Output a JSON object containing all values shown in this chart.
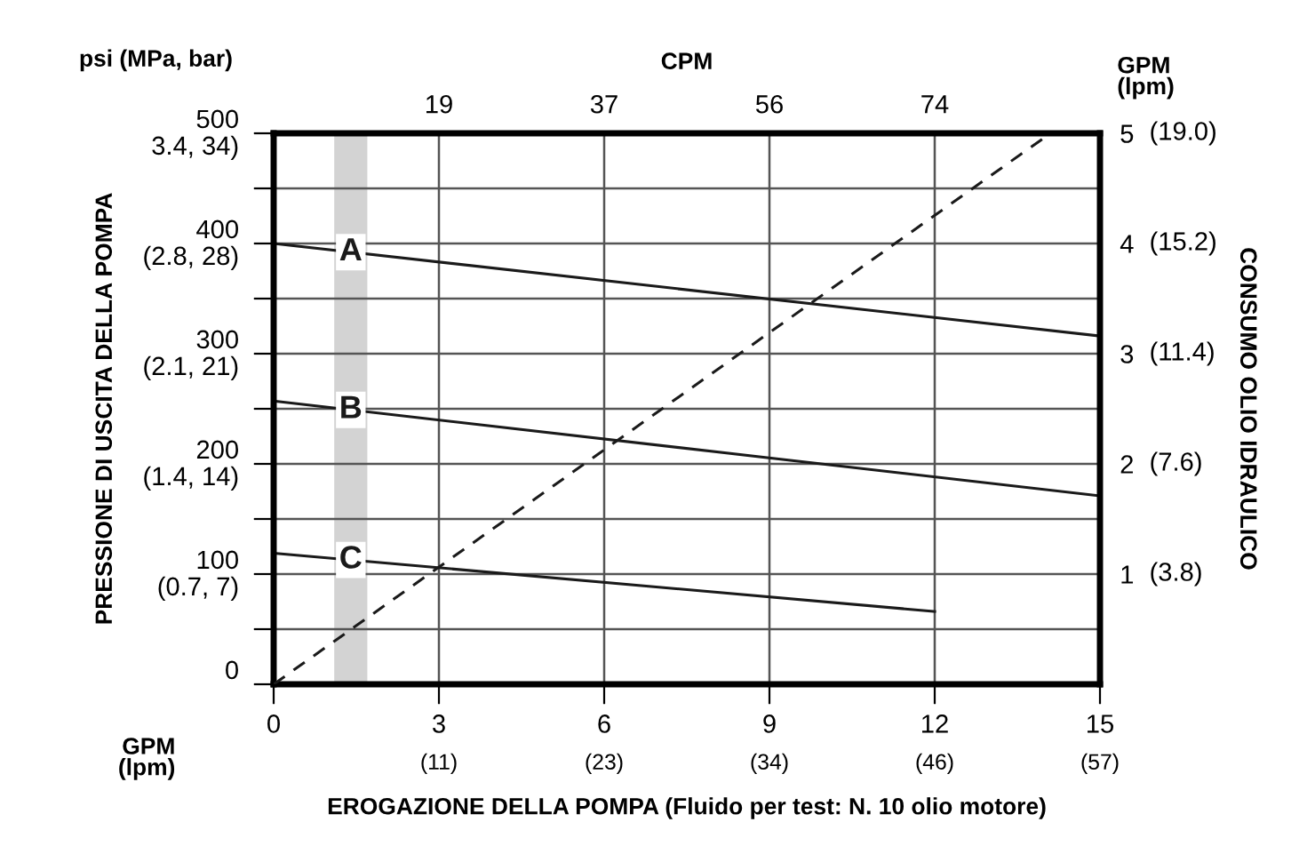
{
  "chart_data": {
    "type": "line",
    "xlabel": "EROGAZIONE DELLA POMPA (Fluido per test: N. 10 olio motore)",
    "ylabel": "PRESSIONE DI USCITA DELLA POMPA",
    "y2label": "CONSUMO OLIO IDRAULICO",
    "x2label": "CPM",
    "annotations": [
      "psi (MPa, bar)",
      "GPM\n(lpm)",
      "GPM\n(lpm)",
      "(0.7, 7)",
      "(1.4, 14)",
      "(2.1, 21)",
      "(2.8, 28)",
      "3.4, 34)",
      "(11)",
      "(23)",
      "(34)",
      "(46)",
      "(57)",
      "(3.8)",
      "(7.6)",
      "(11.4)",
      "(15.2)",
      "(19.0)",
      "19",
      "37",
      "56",
      "74"
    ],
    "series": [
      {
        "name": "A",
        "color": "#1a1a1a",
        "x": [
          0,
          15
        ],
        "values": [
          400,
          316
        ]
      },
      {
        "name": "B",
        "color": "#1a1a1a",
        "x": [
          0,
          15
        ],
        "values": [
          257,
          171
        ]
      },
      {
        "name": "C",
        "color": "#1a1a1a",
        "x": [
          0,
          12
        ],
        "values": [
          119,
          66
        ]
      },
      {
        "color": "#1a1a1a",
        "x": [
          0,
          14.1
        ],
        "values": [
          0,
          5
        ],
        "axis": "y2",
        "line_style": "dashed"
      }
    ],
    "bands": [
      {
        "axis": "x",
        "from": 1.1,
        "to": 1.7,
        "color": "#d3d3d3"
      }
    ],
    "xlim": [
      0,
      15
    ],
    "xticks": [
      0,
      3,
      6,
      9,
      12,
      15
    ],
    "ylim": [
      0,
      500
    ],
    "yticks": [
      0,
      {
        "value": 50,
        "label": null
      },
      100,
      {
        "value": 150,
        "label": null
      },
      200,
      {
        "value": 250,
        "label": null
      },
      300,
      {
        "value": 350,
        "label": null
      },
      400,
      {
        "value": 450,
        "label": null
      },
      500
    ],
    "y2lim": [
      0,
      5
    ],
    "y2ticks": [
      1,
      2,
      3,
      4,
      5
    ],
    "grid": true,
    "marker": "none",
    "line_style": "solid",
    "legend": false
  }
}
